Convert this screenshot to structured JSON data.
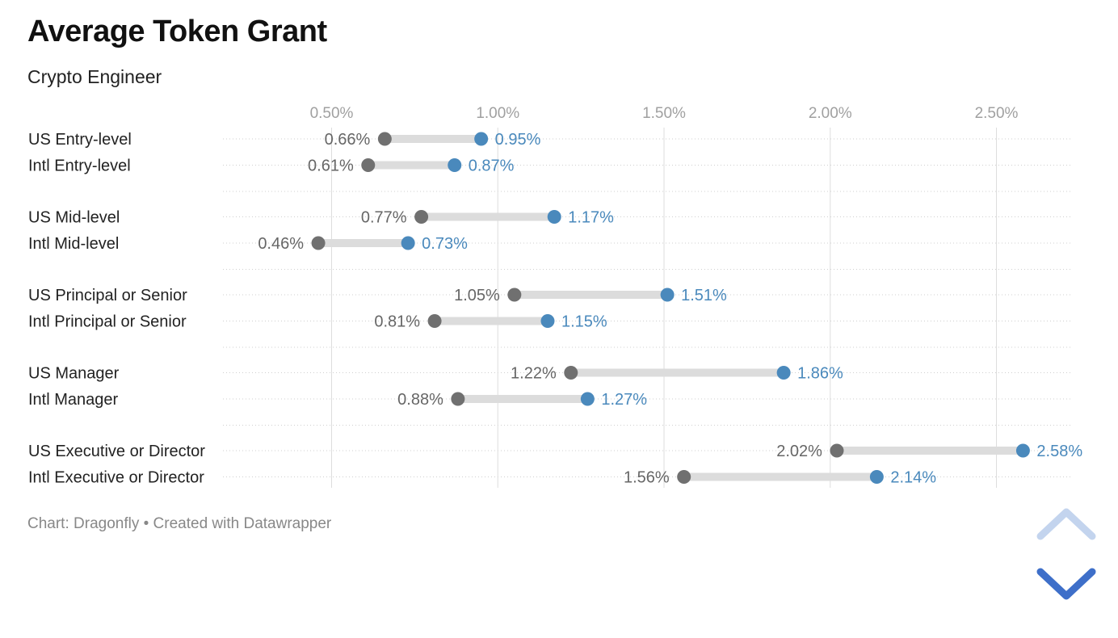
{
  "header": {
    "title": "Average Token Grant",
    "subtitle": "Crypto Engineer"
  },
  "footer": {
    "source_text": "Chart: Dragonfly • Created with Datawrapper"
  },
  "controls": {
    "scroll_up_icon": "chevron-up-icon",
    "scroll_down_icon": "chevron-down-icon",
    "up_color": "#c3d4ee",
    "down_color": "#3e6fc9"
  },
  "chart_data": {
    "type": "dot-range",
    "title": "Average Token Grant",
    "subtitle": "Crypto Engineer",
    "x_ticks": [
      0.5,
      1.0,
      1.5,
      2.0,
      2.5
    ],
    "x_tick_labels": [
      "0.50%",
      "1.00%",
      "1.50%",
      "2.00%",
      "2.50%"
    ],
    "xlim": [
      0.17,
      2.73
    ],
    "grid": true,
    "colors": {
      "low": "#707070",
      "high": "#4a89bc",
      "range_bar": "#dcdcdc",
      "grid": "#dddddd",
      "low_label": "#666666",
      "high_label": "#4a89bc"
    },
    "groups": [
      {
        "rows": [
          {
            "label": "US Entry-level",
            "low": 0.66,
            "high": 0.95,
            "low_label": "0.66%",
            "high_label": "0.95%"
          },
          {
            "label": "Intl Entry-level",
            "low": 0.61,
            "high": 0.87,
            "low_label": "0.61%",
            "high_label": "0.87%"
          }
        ]
      },
      {
        "rows": [
          {
            "label": "US Mid-level",
            "low": 0.77,
            "high": 1.17,
            "low_label": "0.77%",
            "high_label": "1.17%"
          },
          {
            "label": "Intl Mid-level",
            "low": 0.46,
            "high": 0.73,
            "low_label": "0.46%",
            "high_label": "0.73%"
          }
        ]
      },
      {
        "rows": [
          {
            "label": "US Principal or Senior",
            "low": 1.05,
            "high": 1.51,
            "low_label": "1.05%",
            "high_label": "1.51%"
          },
          {
            "label": "Intl Principal or Senior",
            "low": 0.81,
            "high": 1.15,
            "low_label": "0.81%",
            "high_label": "1.15%"
          }
        ]
      },
      {
        "rows": [
          {
            "label": "US Manager",
            "low": 1.22,
            "high": 1.86,
            "low_label": "1.22%",
            "high_label": "1.86%"
          },
          {
            "label": "Intl Manager",
            "low": 0.88,
            "high": 1.27,
            "low_label": "0.88%",
            "high_label": "1.27%"
          }
        ]
      },
      {
        "rows": [
          {
            "label": "US Executive or Director",
            "low": 2.02,
            "high": 2.58,
            "low_label": "2.02%",
            "high_label": "2.58%"
          },
          {
            "label": "Intl Executive or Director",
            "low": 1.56,
            "high": 2.14,
            "low_label": "1.56%",
            "high_label": "2.14%"
          }
        ]
      }
    ]
  }
}
